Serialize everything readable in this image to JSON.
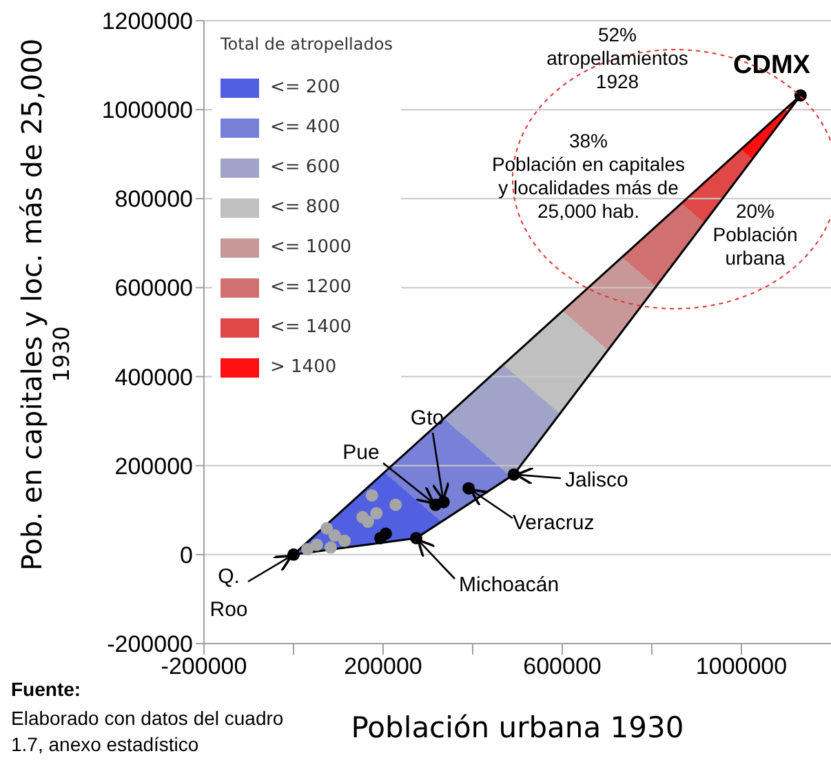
{
  "chart_data": {
    "type": "scatter",
    "xlabel": "Población urbana 1930",
    "ylabel": "Pob. en capitales y loc. más de 25,000\n1930",
    "legend_title": "Total de atropellados",
    "legend": "top left",
    "grid": "y",
    "xlim": [
      -200000,
      1200000
    ],
    "ylim": [
      -200000,
      1200000
    ],
    "xticks": [
      -200000,
      {
        "value": 0,
        "label": null
      },
      200000,
      {
        "value": 400000,
        "label": null
      },
      600000,
      {
        "value": 800000,
        "label": null
      },
      1000000
    ],
    "yticks": [
      -200000,
      0,
      200000,
      400000,
      600000,
      800000,
      1000000,
      1200000
    ],
    "series": [
      {
        "type": "line",
        "color": "#000000",
        "marker": "none",
        "x": [
          0,
          274000,
          492000,
          1132000
        ],
        "values": [
          0,
          37000,
          180000,
          1032000
        ]
      },
      {
        "type": "line",
        "color": "#000000",
        "marker": "none",
        "x": [
          0,
          1132000
        ],
        "values": [
          0,
          1032000
        ]
      },
      {
        "color": "#a6a6a6",
        "marker": "circle",
        "x": [
          175000,
          228000,
          185000,
          154000,
          166000,
          92000,
          114000,
          52000,
          31000,
          83000,
          74000
        ],
        "values": [
          133000,
          112000,
          93000,
          84000,
          74000,
          43000,
          31000,
          22000,
          12000,
          16000,
          59000
        ]
      },
      {
        "color": "#000000",
        "marker": "circle",
        "x": [
          0,
          274000,
          492000,
          317000,
          335000,
          391000,
          194000,
          206000,
          1132000
        ],
        "values": [
          0,
          37000,
          180000,
          112000,
          118000,
          149000,
          37000,
          47000,
          1032000
        ]
      },
      {
        "type": "area",
        "name": "<= 200",
        "color": "#5060e0"
      },
      {
        "type": "area",
        "name": "<= 400",
        "color": "#7880d8"
      },
      {
        "type": "area",
        "name": "<= 600",
        "color": "#a0a4c8"
      },
      {
        "type": "area",
        "name": "<= 800",
        "color": "#c0c0c0"
      },
      {
        "type": "area",
        "name": "<= 1000",
        "color": "#c89898"
      },
      {
        "type": "area",
        "name": "<= 1200",
        "color": "#d07070"
      },
      {
        "type": "area",
        "name": "<= 1400",
        "color": "#e04848"
      },
      {
        "type": "area",
        "name": "> 1400",
        "color": "#ff1010"
      }
    ],
    "annotations": [
      {
        "text": "CDMX",
        "x": 1132000,
        "y": 1032000
      },
      {
        "text": "Jalisco",
        "x": 492000,
        "y": 180000
      },
      {
        "text": "Veracruz",
        "x": 391000,
        "y": 149000
      },
      {
        "text": "Gto",
        "x": 335000,
        "y": 118000
      },
      {
        "text": "Pue",
        "x": 317000,
        "y": 112000
      },
      {
        "text": "Q.\nRoo",
        "x": 0,
        "y": 0
      },
      {
        "text": "Michoacán",
        "x": 274000,
        "y": 37000
      },
      "52%\natropellamientos\n1928",
      "38%\nPoblación en capitales\ny localidades más de\n25,000 hab.",
      "20%\nPoblación\nurbana",
      "Fuente:",
      "Elaborado con datos del cuadro\n1.7, anexo estadístico"
    ]
  }
}
